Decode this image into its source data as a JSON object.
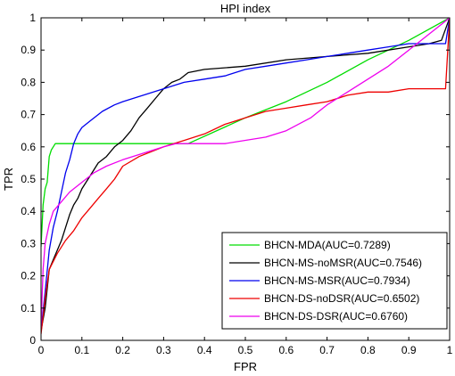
{
  "chart_data": {
    "type": "line",
    "title": "HPI index",
    "xlabel": "FPR",
    "ylabel": "TPR",
    "xlim": [
      0,
      1
    ],
    "ylim": [
      0,
      1
    ],
    "xticks": [
      "0",
      "0.1",
      "0.2",
      "0.3",
      "0.4",
      "0.5",
      "0.6",
      "0.7",
      "0.8",
      "0.9",
      "1"
    ],
    "yticks": [
      "0",
      "0.1",
      "0.2",
      "0.3",
      "0.4",
      "0.5",
      "0.6",
      "0.7",
      "0.8",
      "0.9",
      "1"
    ],
    "grid": false,
    "legend_position": "bottom-right",
    "series": [
      {
        "name": "BHCN-MDA(AUC=0.7289)",
        "color": "#00dd00",
        "points": [
          [
            0,
            0.29
          ],
          [
            0.005,
            0.42
          ],
          [
            0.01,
            0.47
          ],
          [
            0.015,
            0.49
          ],
          [
            0.02,
            0.57
          ],
          [
            0.025,
            0.59
          ],
          [
            0.03,
            0.6
          ],
          [
            0.035,
            0.61
          ],
          [
            0.1,
            0.61
          ],
          [
            0.2,
            0.61
          ],
          [
            0.3,
            0.61
          ],
          [
            0.36,
            0.61
          ],
          [
            0.5,
            0.69
          ],
          [
            0.6,
            0.74
          ],
          [
            0.7,
            0.8
          ],
          [
            0.8,
            0.87
          ],
          [
            0.9,
            0.93
          ],
          [
            1.0,
            1.0
          ]
        ]
      },
      {
        "name": "BHCN-MS-noMSR(AUC=0.7546)",
        "color": "#000000",
        "points": [
          [
            0,
            0.03
          ],
          [
            0.01,
            0.1
          ],
          [
            0.02,
            0.22
          ],
          [
            0.03,
            0.25
          ],
          [
            0.04,
            0.28
          ],
          [
            0.05,
            0.31
          ],
          [
            0.06,
            0.35
          ],
          [
            0.07,
            0.39
          ],
          [
            0.08,
            0.42
          ],
          [
            0.09,
            0.44
          ],
          [
            0.1,
            0.47
          ],
          [
            0.12,
            0.51
          ],
          [
            0.14,
            0.55
          ],
          [
            0.16,
            0.57
          ],
          [
            0.18,
            0.6
          ],
          [
            0.2,
            0.62
          ],
          [
            0.22,
            0.65
          ],
          [
            0.24,
            0.69
          ],
          [
            0.26,
            0.72
          ],
          [
            0.28,
            0.75
          ],
          [
            0.3,
            0.78
          ],
          [
            0.32,
            0.8
          ],
          [
            0.34,
            0.81
          ],
          [
            0.36,
            0.83
          ],
          [
            0.4,
            0.84
          ],
          [
            0.5,
            0.85
          ],
          [
            0.6,
            0.87
          ],
          [
            0.7,
            0.88
          ],
          [
            0.8,
            0.89
          ],
          [
            0.9,
            0.91
          ],
          [
            0.95,
            0.92
          ],
          [
            0.98,
            0.93
          ],
          [
            1.0,
            1.0
          ]
        ]
      },
      {
        "name": "BHCN-MS-MSR(AUC=0.7934)",
        "color": "#0000ee",
        "points": [
          [
            0,
            0.03
          ],
          [
            0.01,
            0.15
          ],
          [
            0.02,
            0.28
          ],
          [
            0.03,
            0.35
          ],
          [
            0.04,
            0.4
          ],
          [
            0.05,
            0.46
          ],
          [
            0.06,
            0.52
          ],
          [
            0.07,
            0.56
          ],
          [
            0.08,
            0.61
          ],
          [
            0.09,
            0.64
          ],
          [
            0.1,
            0.66
          ],
          [
            0.12,
            0.68
          ],
          [
            0.15,
            0.71
          ],
          [
            0.18,
            0.73
          ],
          [
            0.2,
            0.74
          ],
          [
            0.25,
            0.76
          ],
          [
            0.3,
            0.78
          ],
          [
            0.35,
            0.8
          ],
          [
            0.4,
            0.81
          ],
          [
            0.45,
            0.82
          ],
          [
            0.5,
            0.84
          ],
          [
            0.55,
            0.85
          ],
          [
            0.6,
            0.86
          ],
          [
            0.65,
            0.87
          ],
          [
            0.7,
            0.88
          ],
          [
            0.75,
            0.89
          ],
          [
            0.8,
            0.9
          ],
          [
            0.85,
            0.91
          ],
          [
            0.9,
            0.92
          ],
          [
            0.99,
            0.92
          ],
          [
            1.0,
            1.0
          ]
        ]
      },
      {
        "name": "BHCN-DS-noDSR(AUC=0.6502)",
        "color": "#ee0000",
        "points": [
          [
            0,
            0.02
          ],
          [
            0.01,
            0.13
          ],
          [
            0.02,
            0.22
          ],
          [
            0.04,
            0.27
          ],
          [
            0.06,
            0.31
          ],
          [
            0.08,
            0.34
          ],
          [
            0.1,
            0.38
          ],
          [
            0.12,
            0.41
          ],
          [
            0.14,
            0.44
          ],
          [
            0.16,
            0.47
          ],
          [
            0.18,
            0.5
          ],
          [
            0.2,
            0.54
          ],
          [
            0.24,
            0.57
          ],
          [
            0.28,
            0.59
          ],
          [
            0.3,
            0.6
          ],
          [
            0.35,
            0.62
          ],
          [
            0.4,
            0.64
          ],
          [
            0.45,
            0.67
          ],
          [
            0.5,
            0.69
          ],
          [
            0.55,
            0.71
          ],
          [
            0.6,
            0.72
          ],
          [
            0.65,
            0.73
          ],
          [
            0.7,
            0.74
          ],
          [
            0.75,
            0.76
          ],
          [
            0.8,
            0.77
          ],
          [
            0.85,
            0.77
          ],
          [
            0.9,
            0.78
          ],
          [
            0.95,
            0.78
          ],
          [
            0.99,
            0.78
          ],
          [
            1.0,
            1.0
          ]
        ]
      },
      {
        "name": "BHCN-DS-DSR(AUC=0.6760)",
        "color": "#ee00ee",
        "points": [
          [
            0,
            0.04
          ],
          [
            0.005,
            0.22
          ],
          [
            0.01,
            0.3
          ],
          [
            0.02,
            0.36
          ],
          [
            0.03,
            0.4
          ],
          [
            0.05,
            0.43
          ],
          [
            0.07,
            0.46
          ],
          [
            0.1,
            0.49
          ],
          [
            0.13,
            0.52
          ],
          [
            0.16,
            0.54
          ],
          [
            0.2,
            0.56
          ],
          [
            0.25,
            0.58
          ],
          [
            0.3,
            0.6
          ],
          [
            0.33,
            0.61
          ],
          [
            0.45,
            0.61
          ],
          [
            0.55,
            0.63
          ],
          [
            0.6,
            0.65
          ],
          [
            0.66,
            0.69
          ],
          [
            0.7,
            0.73
          ],
          [
            0.75,
            0.77
          ],
          [
            0.8,
            0.81
          ],
          [
            0.85,
            0.85
          ],
          [
            0.9,
            0.9
          ],
          [
            0.95,
            0.95
          ],
          [
            1.0,
            1.0
          ]
        ]
      }
    ]
  }
}
